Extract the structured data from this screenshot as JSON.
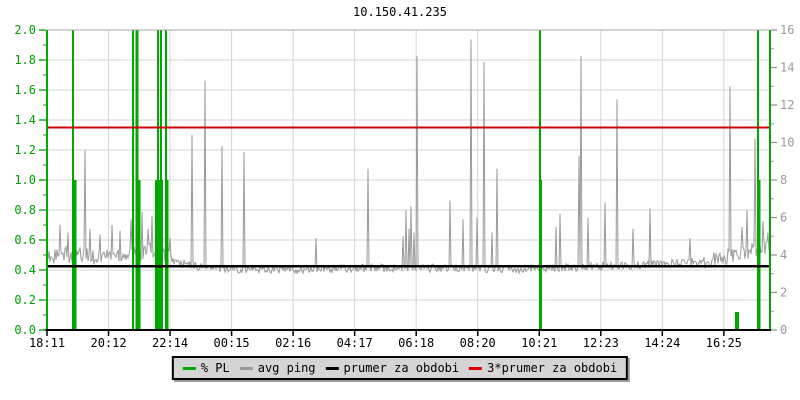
{
  "title": "10.150.41.235",
  "chart_data": {
    "type": "line",
    "title": "10.150.41.235",
    "grid": true,
    "legend_position": "bottom",
    "x_tick_labels": [
      "18:11",
      "20:12",
      "22:14",
      "00:15",
      "02:16",
      "04:17",
      "06:18",
      "08:20",
      "10:21",
      "12:23",
      "14:24",
      "16:25"
    ],
    "left_axis": {
      "min": 0,
      "max": 2.0,
      "color": "#00A000",
      "tick_labels": [
        "0.0",
        "0.2",
        "0.4",
        "0.6",
        "0.8",
        "1.0",
        "1.2",
        "1.4",
        "1.6",
        "1.8",
        "2.0"
      ]
    },
    "right_axis": {
      "min": 0,
      "max": 16,
      "color": "#999999",
      "tick_labels": [
        "0",
        "2",
        "4",
        "6",
        "8",
        "10",
        "12",
        "14",
        "16"
      ]
    },
    "series": [
      {
        "name": "% PL",
        "type": "vertical-loss-bars",
        "axis": "left",
        "color": "#00A800",
        "events": [
          {
            "f": 0.036,
            "pl": 2.0,
            "w": 2
          },
          {
            "f": 0.0387,
            "pl": 1.0,
            "w": 3
          },
          {
            "f": 0.1189,
            "pl": 2.0,
            "w": 2
          },
          {
            "f": 0.1245,
            "pl": 2.0,
            "w": 3
          },
          {
            "f": 0.1272,
            "pl": 1.0,
            "w": 3
          },
          {
            "f": 0.1535,
            "pl": 2.0,
            "w": 2
          },
          {
            "f": 0.1577,
            "pl": 2.0,
            "w": 2
          },
          {
            "f": 0.1549,
            "pl": 1.0,
            "w": 8
          },
          {
            "f": 0.1646,
            "pl": 2.0,
            "w": 2
          },
          {
            "f": 0.166,
            "pl": 1.0,
            "w": 3
          },
          {
            "f": 0.6819,
            "pl": 2.0,
            "w": 2
          },
          {
            "f": 0.6826,
            "pl": 1.0,
            "w": 3
          },
          {
            "f": 0.9544,
            "pl": 0.12,
            "w": 4
          },
          {
            "f": 0.9834,
            "pl": 2.0,
            "w": 2
          },
          {
            "f": 0.9848,
            "pl": 1.0,
            "w": 3
          }
        ]
      },
      {
        "name": "avg ping",
        "type": "noisy-line",
        "axis": "right",
        "color": "#9A9A9A",
        "baseline_anchors": [
          [
            0.0,
            3.9
          ],
          [
            0.03,
            4.0
          ],
          [
            0.06,
            3.9
          ],
          [
            0.09,
            4.0
          ],
          [
            0.12,
            4.1
          ],
          [
            0.15,
            4.2
          ],
          [
            0.165,
            4.0
          ],
          [
            0.18,
            3.6
          ],
          [
            0.22,
            3.3
          ],
          [
            0.28,
            3.25
          ],
          [
            0.35,
            3.2
          ],
          [
            0.42,
            3.3
          ],
          [
            0.5,
            3.3
          ],
          [
            0.58,
            3.3
          ],
          [
            0.65,
            3.25
          ],
          [
            0.7,
            3.3
          ],
          [
            0.75,
            3.4
          ],
          [
            0.8,
            3.45
          ],
          [
            0.84,
            3.5
          ],
          [
            0.88,
            3.6
          ],
          [
            0.91,
            3.7
          ],
          [
            0.94,
            3.9
          ],
          [
            0.96,
            4.1
          ],
          [
            0.98,
            4.3
          ],
          [
            1.0,
            4.4
          ]
        ],
        "spikes": [
          [
            0.018,
            5.6
          ],
          [
            0.029,
            5.2
          ],
          [
            0.0526,
            9.6
          ],
          [
            0.0595,
            5.4
          ],
          [
            0.0733,
            5.1
          ],
          [
            0.0899,
            5.6
          ],
          [
            0.101,
            5.3
          ],
          [
            0.1162,
            5.9
          ],
          [
            0.1314,
            6.3
          ],
          [
            0.1397,
            5.4
          ],
          [
            0.1452,
            6.1
          ],
          [
            0.1701,
            4.9
          ],
          [
            0.2006,
            10.4
          ],
          [
            0.2185,
            13.3
          ],
          [
            0.2421,
            9.8
          ],
          [
            0.2725,
            9.5
          ],
          [
            0.3721,
            4.9
          ],
          [
            0.444,
            8.6
          ],
          [
            0.4924,
            5.0
          ],
          [
            0.4965,
            6.4
          ],
          [
            0.5007,
            5.4
          ],
          [
            0.5035,
            6.6
          ],
          [
            0.5076,
            5.2
          ],
          [
            0.5118,
            14.6
          ],
          [
            0.5574,
            6.9
          ],
          [
            0.5754,
            5.9
          ],
          [
            0.5865,
            15.5
          ],
          [
            0.5948,
            6.0
          ],
          [
            0.6044,
            14.3
          ],
          [
            0.6155,
            5.2
          ],
          [
            0.6224,
            8.6
          ],
          [
            0.704,
            5.5
          ],
          [
            0.7095,
            6.2
          ],
          [
            0.7358,
            9.3
          ],
          [
            0.7386,
            14.6
          ],
          [
            0.7483,
            6.0
          ],
          [
            0.7718,
            6.8
          ],
          [
            0.7884,
            12.3
          ],
          [
            0.8106,
            5.4
          ],
          [
            0.834,
            6.5
          ],
          [
            0.8893,
            4.9
          ],
          [
            0.9447,
            13.0
          ],
          [
            0.9613,
            5.5
          ],
          [
            0.9682,
            6.4
          ],
          [
            0.9793,
            10.2
          ],
          [
            0.9903,
            5.8
          ],
          [
            0.9972,
            5.2
          ]
        ],
        "noise": {
          "base": 0.22,
          "left": 0.45,
          "left_until": 0.17,
          "right": 0.4,
          "right_from": 0.91
        }
      },
      {
        "name": "prumer za obdobi",
        "type": "hline",
        "axis": "right",
        "color": "#000000",
        "value": 3.4
      },
      {
        "name": "3*prumer za obdobi",
        "type": "hline",
        "axis": "right",
        "color": "#CC0000",
        "value": 10.8
      }
    ],
    "legend": [
      {
        "label": "% PL",
        "color": "#00A800"
      },
      {
        "label": "avg ping",
        "color": "#9A9A9A"
      },
      {
        "label": "prumer za obdobi",
        "color": "#000000"
      },
      {
        "label": "3*prumer za obdobi",
        "color": "#E00000"
      }
    ],
    "frame_colors": {
      "top": "#A8A8A8",
      "left": "#00A800",
      "bottom": "#000000",
      "right": "#00A800",
      "grid": "#D5D5D5"
    }
  }
}
